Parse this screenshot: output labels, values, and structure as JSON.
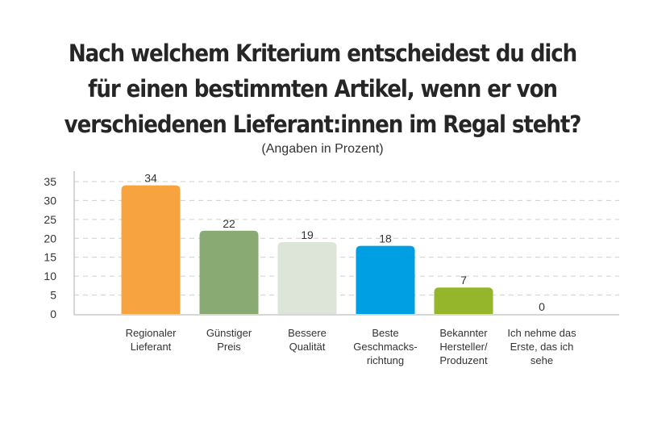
{
  "chart_data": {
    "type": "bar",
    "title": [
      "Nach welchem Kriterium entscheidest du dich",
      "für einen bestimmten Artikel, wenn er von",
      "verschiedenen Lieferant:innen im Regal steht?"
    ],
    "subtitle": "(Angaben in Prozent)",
    "xlabel": "",
    "ylabel": "",
    "ylim": [
      0,
      35
    ],
    "yticks": [
      0,
      5,
      10,
      15,
      20,
      25,
      30,
      35
    ],
    "grid": true,
    "legend": "none",
    "categories": [
      [
        "Regionaler",
        "Lieferant"
      ],
      [
        "Günstiger",
        "Preis"
      ],
      [
        "Bessere Qualität"
      ],
      [
        "Beste",
        "Geschmacks-",
        "richtung"
      ],
      [
        "Bekannter",
        "Hersteller/",
        "Produzent"
      ],
      [
        "Ich nehme das",
        "Erste, das ich",
        "sehe"
      ]
    ],
    "values": [
      34,
      22,
      19,
      18,
      7,
      0
    ],
    "colors": [
      "#f7a440",
      "#8aaa73",
      "#dde5d8",
      "#009fe3",
      "#95b52b",
      "#cccccc"
    ]
  }
}
